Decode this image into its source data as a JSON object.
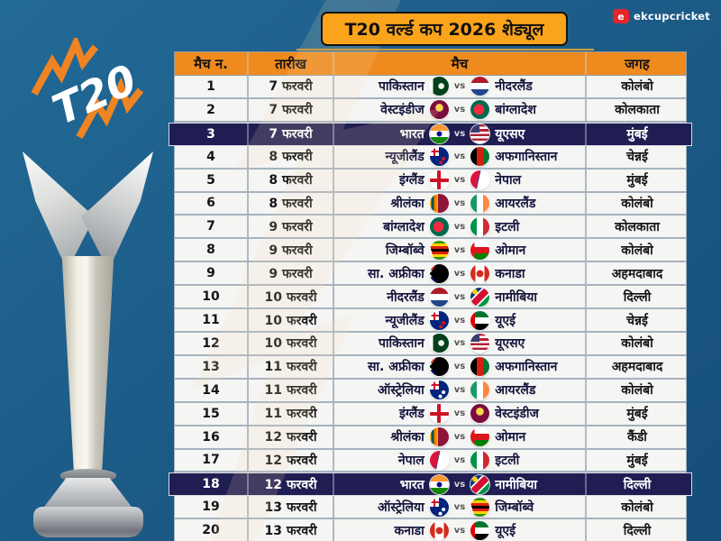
{
  "brand": {
    "logo_letter": "e",
    "logo_text": "ekcupcricket",
    "logo_color": "#e4252c"
  },
  "title": "T20 वर्ल्ड कप 2026 शेड्यूल",
  "t20_logo_text": "T20",
  "colors": {
    "background_blue": "#1d5c88",
    "header_orange": "#ef8b1e",
    "title_orange": "#f9a41b",
    "highlight_navy": "#201d52",
    "row_white": "#f5f5f3",
    "accent_bolt_orange": "#ee8422"
  },
  "table": {
    "headers": {
      "match_no": "मैच न.",
      "date": "तारीख",
      "match": "मैच",
      "venue": "जगह"
    },
    "vs_label": "vs",
    "rows": [
      {
        "no": "1",
        "date": "7 फरवरी",
        "team1": "पाकिस्तान",
        "flag1": "pak",
        "team2": "नीदरलैंड",
        "flag2": "ned",
        "venue": "कोलंबो",
        "highlight": false
      },
      {
        "no": "2",
        "date": "7 फरवरी",
        "team1": "वेस्टइंडीज",
        "flag1": "wi",
        "team2": "बांग्लादेश",
        "flag2": "ban",
        "venue": "कोलकाता",
        "highlight": false
      },
      {
        "no": "3",
        "date": "7 फरवरी",
        "team1": "भारत",
        "flag1": "ind",
        "team2": "यूएसए",
        "flag2": "usa",
        "venue": "मुंबई",
        "highlight": true
      },
      {
        "no": "4",
        "date": "8 फरवरी",
        "team1": "न्यूजीलैंड",
        "flag1": "nz",
        "team2": "अफगानिस्तान",
        "flag2": "afg",
        "venue": "चेन्नई",
        "highlight": false
      },
      {
        "no": "5",
        "date": "8 फरवरी",
        "team1": "इंग्लैंड",
        "flag1": "eng",
        "team2": "नेपाल",
        "flag2": "nep",
        "venue": "मुंबई",
        "highlight": false
      },
      {
        "no": "6",
        "date": "8 फरवरी",
        "team1": "श्रीलंका",
        "flag1": "sl",
        "team2": "आयरलैंड",
        "flag2": "irl",
        "venue": "कोलंबो",
        "highlight": false
      },
      {
        "no": "7",
        "date": "9 फरवरी",
        "team1": "बांग्लादेश",
        "flag1": "ban",
        "team2": "इटली",
        "flag2": "ita",
        "venue": "कोलकाता",
        "highlight": false
      },
      {
        "no": "8",
        "date": "9 फरवरी",
        "team1": "जिम्बॉब्वे",
        "flag1": "zim",
        "team2": "ओमान",
        "flag2": "oma",
        "venue": "कोलंबो",
        "highlight": false
      },
      {
        "no": "9",
        "date": "9 फरवरी",
        "team1": "सा. अफ्रीका",
        "flag1": "rsa",
        "team2": "कनाडा",
        "flag2": "can",
        "venue": "अहमदाबाद",
        "highlight": false
      },
      {
        "no": "10",
        "date": "10 फरवरी",
        "team1": "नीदरलैंड",
        "flag1": "ned",
        "team2": "नामीबिया",
        "flag2": "nam",
        "venue": "दिल्ली",
        "highlight": false
      },
      {
        "no": "11",
        "date": "10 फरवरी",
        "team1": "न्यूजीलैंड",
        "flag1": "nz",
        "team2": "यूएई",
        "flag2": "uae",
        "venue": "चेन्नई",
        "highlight": false
      },
      {
        "no": "12",
        "date": "10 फरवरी",
        "team1": "पाकिस्तान",
        "flag1": "pak",
        "team2": "यूएसए",
        "flag2": "usa",
        "venue": "कोलंबो",
        "highlight": false
      },
      {
        "no": "13",
        "date": "11 फरवरी",
        "team1": "सा. अफ्रीका",
        "flag1": "rsa",
        "team2": "अफगानिस्तान",
        "flag2": "afg",
        "venue": "अहमदाबाद",
        "highlight": false
      },
      {
        "no": "14",
        "date": "11 फरवरी",
        "team1": "ऑस्ट्रेलिया",
        "flag1": "aus",
        "team2": "आयरलैंड",
        "flag2": "irl",
        "venue": "कोलंबो",
        "highlight": false
      },
      {
        "no": "15",
        "date": "11 फरवरी",
        "team1": "इंग्लैंड",
        "flag1": "eng",
        "team2": "वेस्टइंडीज",
        "flag2": "wi",
        "venue": "मुंबई",
        "highlight": false
      },
      {
        "no": "16",
        "date": "12 फरवरी",
        "team1": "श्रीलंका",
        "flag1": "sl",
        "team2": "ओमान",
        "flag2": "oma",
        "venue": "कैंडी",
        "highlight": false
      },
      {
        "no": "17",
        "date": "12 फरवरी",
        "team1": "नेपाल",
        "flag1": "nep",
        "team2": "इटली",
        "flag2": "ita",
        "venue": "मुंबई",
        "highlight": false
      },
      {
        "no": "18",
        "date": "12 फरवरी",
        "team1": "भारत",
        "flag1": "ind",
        "team2": "नामीबिया",
        "flag2": "nam",
        "venue": "दिल्ली",
        "highlight": true
      },
      {
        "no": "19",
        "date": "13 फरवरी",
        "team1": "ऑस्ट्रेलिया",
        "flag1": "aus",
        "team2": "जिम्बॉब्वे",
        "flag2": "zim",
        "venue": "कोलंबो",
        "highlight": false
      },
      {
        "no": "20",
        "date": "13 फरवरी",
        "team1": "कनाडा",
        "flag1": "can",
        "team2": "यूएई",
        "flag2": "uae",
        "venue": "दिल्ली",
        "highlight": false
      }
    ]
  }
}
